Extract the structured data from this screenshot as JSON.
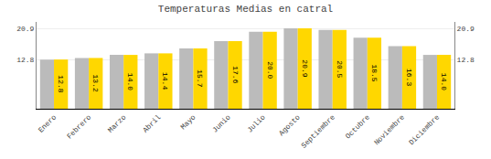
{
  "chart_data": {
    "type": "bar",
    "title": "Temperaturas Medias en catral",
    "categories": [
      "Enero",
      "Febrero",
      "Marzo",
      "Abril",
      "Mayo",
      "Junio",
      "Julio",
      "Agosto",
      "Septiembre",
      "Octubre",
      "Noviembre",
      "Diciembre"
    ],
    "series": [
      {
        "color": "#BBBBBB",
        "values": [
          12.8,
          13.2,
          14.0,
          14.4,
          15.7,
          17.6,
          20.0,
          20.9,
          20.5,
          18.5,
          16.3,
          14.0
        ]
      },
      {
        "color": "#FFD700",
        "values": [
          12.8,
          13.2,
          14.0,
          14.4,
          15.7,
          17.6,
          20.0,
          20.9,
          20.5,
          18.5,
          16.3,
          14.0
        ],
        "value_labels": [
          "12.8",
          "13.2",
          "14.0",
          "14.4",
          "15.7",
          "17.6",
          "20.0",
          "20.9",
          "20.5",
          "18.5",
          "16.3",
          "14.0"
        ],
        "data_labels": true
      }
    ],
    "ylim": [
      0,
      22.572
    ],
    "yticks": [
      12.8,
      20.9
    ],
    "y2lim": [
      0,
      22.572
    ],
    "y2ticks": [
      12.8,
      20.9
    ],
    "grid": true
  }
}
